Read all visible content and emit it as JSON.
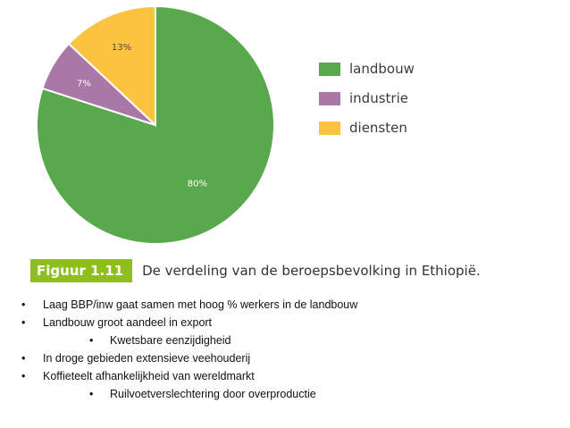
{
  "chart_data": {
    "type": "pie",
    "slices": [
      {
        "label": "landbouw",
        "value": 80,
        "value_label": "80%",
        "color": "#5aa84d"
      },
      {
        "label": "industrie",
        "value": 7,
        "value_label": "7%",
        "color": "#a978a7"
      },
      {
        "label": "diensten",
        "value": 13,
        "value_label": "13%",
        "color": "#fcc340"
      }
    ],
    "legend_position": "right"
  },
  "caption": {
    "figure_label": "Figuur 1.11",
    "text": "De verdeling van de beroepsbevolking in Ethiopië."
  },
  "bullets": [
    {
      "level": 1,
      "text": "Laag BBP/inw gaat samen met hoog % werkers in de landbouw"
    },
    {
      "level": 1,
      "text": "Landbouw groot aandeel in export"
    },
    {
      "level": 2,
      "text": "Kwetsbare eenzijdigheid"
    },
    {
      "level": 1,
      "text": "In droge gebieden extensieve veehouderij"
    },
    {
      "level": 1,
      "text": "Koffieteelt afhankelijkheid  van wereldmarkt"
    },
    {
      "level": 2,
      "text": "Ruilvoetverslechtering door overproductie"
    }
  ],
  "bullet_symbol": "•"
}
